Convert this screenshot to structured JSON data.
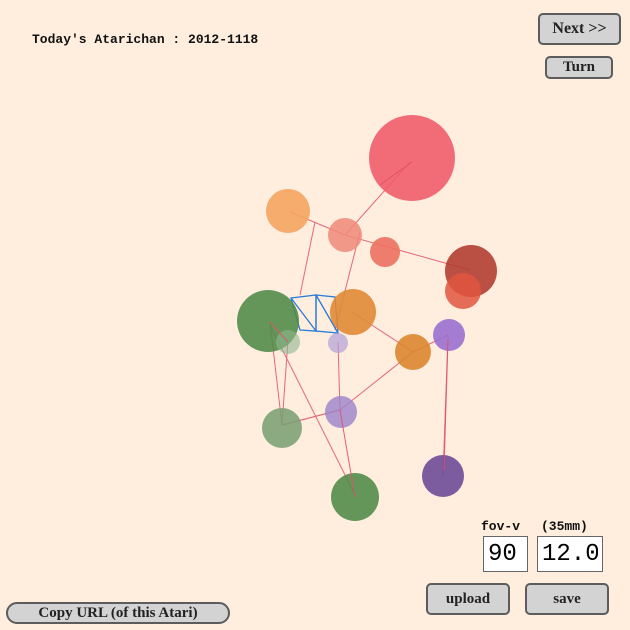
{
  "header": {
    "title": "Today's Atarichan : 2012-1118"
  },
  "buttons": {
    "next": "Next >>",
    "turn": "Turn",
    "upload": "upload",
    "save": "save",
    "copy_url": "Copy URL (of this Atari)"
  },
  "camera": {
    "fov_label": "fov-v",
    "focal_label": "(35mm)",
    "fov_value": "90",
    "focal_value": "12.0"
  },
  "colors": {
    "background": "#ffeede",
    "link_line": "#e0506a",
    "wire_line": "#2a7ad8"
  }
}
